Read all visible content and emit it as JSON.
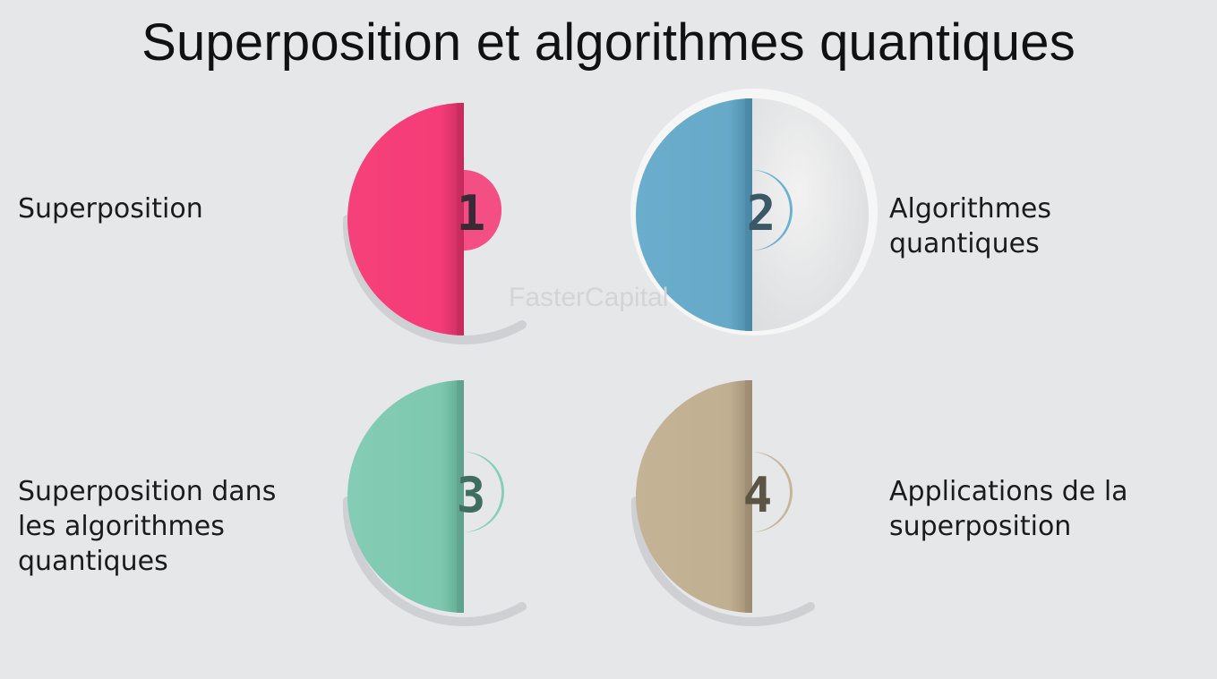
{
  "title": "Superposition et algorithmes quantiques",
  "watermark": "FasterCapital",
  "steps": [
    {
      "number": "1",
      "label": "Superposition",
      "color": "#f53c78"
    },
    {
      "number": "2",
      "label": "Algorithmes quantiques",
      "color": "#66a9c8"
    },
    {
      "number": "3",
      "label": "Superposition dans les algorithmes quantiques",
      "color": "#7fc8b0"
    },
    {
      "number": "4",
      "label": "Applications de la superposition",
      "color": "#c1af91"
    }
  ]
}
